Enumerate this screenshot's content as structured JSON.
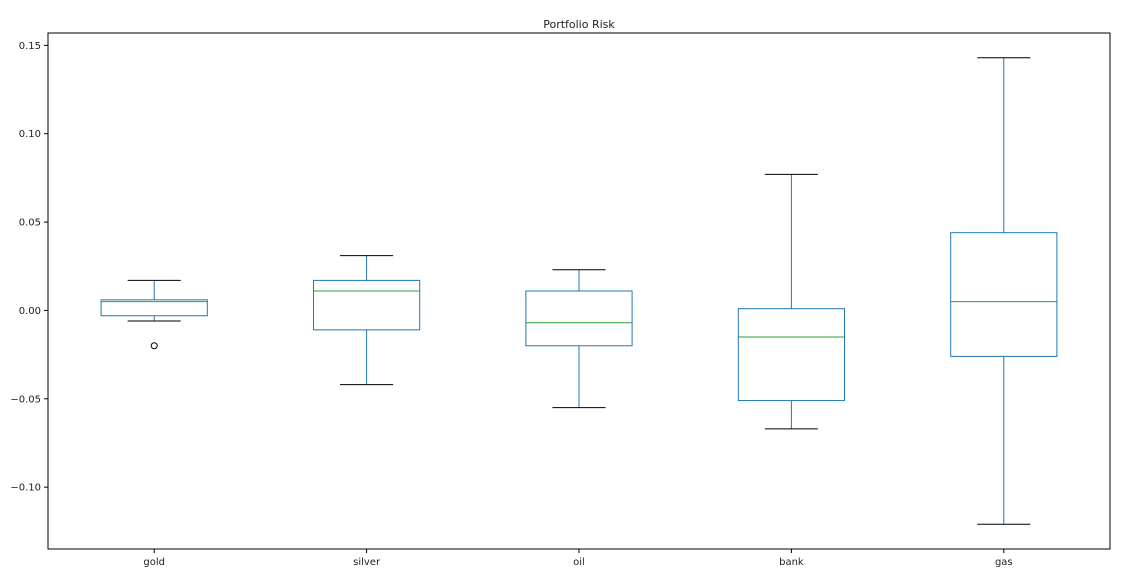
{
  "chart_data": {
    "type": "box",
    "title": "Portfolio Risk",
    "xlabel": "",
    "ylabel": "",
    "ylim": [
      -0.135,
      0.157
    ],
    "yticks": [
      -0.1,
      -0.05,
      0.0,
      0.05,
      0.1,
      0.15
    ],
    "ytick_labels": [
      "−0.10",
      "−0.05",
      "0.00",
      "0.05",
      "0.10",
      "0.15"
    ],
    "grid": false,
    "legend": "none",
    "colors": {
      "box": "#1f77b4",
      "median": "#2ca02c",
      "whisker_cap": "#000000",
      "outlier": "#000000"
    },
    "categories": [
      "gold",
      "silver",
      "oil",
      "bank",
      "gas"
    ],
    "boxes": [
      {
        "name": "gold",
        "whislo": -0.006,
        "q1": -0.003,
        "med": 0.005,
        "q3": 0.006,
        "whishi": 0.017,
        "fliers": [
          -0.02
        ]
      },
      {
        "name": "silver",
        "whislo": -0.042,
        "q1": -0.011,
        "med": 0.011,
        "q3": 0.017,
        "whishi": 0.031,
        "fliers": []
      },
      {
        "name": "oil",
        "whislo": -0.055,
        "q1": -0.02,
        "med": -0.007,
        "q3": 0.011,
        "whishi": 0.023,
        "fliers": []
      },
      {
        "name": "bank",
        "whislo": -0.067,
        "q1": -0.051,
        "med": -0.015,
        "q3": 0.001,
        "whishi": 0.077,
        "fliers": []
      },
      {
        "name": "gas",
        "whislo": -0.121,
        "q1": -0.026,
        "med": 0.005,
        "q3": 0.044,
        "whishi": 0.143,
        "fliers": []
      }
    ]
  }
}
